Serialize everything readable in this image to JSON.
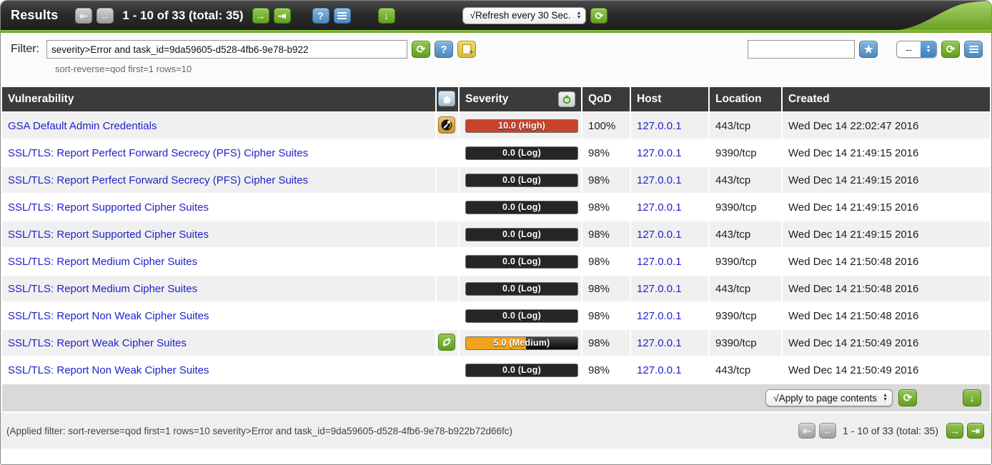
{
  "header": {
    "title": "Results",
    "pagination_label": "1 - 10 of 33 (total: 35)",
    "refresh_select_value": "√Refresh every 30 Sec.",
    "icons": {
      "first": "⇤",
      "prev": "←",
      "next": "→",
      "last": "⇥",
      "help": "?",
      "list": "list-lines-icon",
      "download": "↓",
      "refresh": "⟳"
    }
  },
  "filter": {
    "label": "Filter:",
    "value": "severity>Error and task_id=9da59605-d528-4fb6-9e78-b922",
    "subtext": "sort-reverse=qod first=1 rows=10",
    "saved_search_value": "",
    "saved_select_value": "--",
    "icons": {
      "refresh": "⟳",
      "help": "?",
      "new": "+",
      "star": "★"
    }
  },
  "table": {
    "columns": {
      "vulnerability": "Vulnerability",
      "solution_type": "solution-type-puzzle-icon",
      "severity": "Severity",
      "qod": "QoD",
      "host": "Host",
      "location": "Location",
      "created": "Created"
    },
    "rows": [
      {
        "name": "GSA Default Admin Credentials",
        "solution_type": "workaround",
        "severity": {
          "label": "10.0 (High)",
          "level": "high",
          "fill_pct": 100
        },
        "qod": "100%",
        "host": "127.0.0.1",
        "location": "443/tcp",
        "created": "Wed Dec 14 22:02:47 2016"
      },
      {
        "name": "SSL/TLS: Report Perfect Forward Secrecy (PFS) Cipher Suites",
        "solution_type": "",
        "severity": {
          "label": "0.0 (Log)",
          "level": "log",
          "fill_pct": 100
        },
        "qod": "98%",
        "host": "127.0.0.1",
        "location": "9390/tcp",
        "created": "Wed Dec 14 21:49:15 2016"
      },
      {
        "name": "SSL/TLS: Report Perfect Forward Secrecy (PFS) Cipher Suites",
        "solution_type": "",
        "severity": {
          "label": "0.0 (Log)",
          "level": "log",
          "fill_pct": 100
        },
        "qod": "98%",
        "host": "127.0.0.1",
        "location": "443/tcp",
        "created": "Wed Dec 14 21:49:15 2016"
      },
      {
        "name": "SSL/TLS: Report Supported Cipher Suites",
        "solution_type": "",
        "severity": {
          "label": "0.0 (Log)",
          "level": "log",
          "fill_pct": 100
        },
        "qod": "98%",
        "host": "127.0.0.1",
        "location": "9390/tcp",
        "created": "Wed Dec 14 21:49:15 2016"
      },
      {
        "name": "SSL/TLS: Report Supported Cipher Suites",
        "solution_type": "",
        "severity": {
          "label": "0.0 (Log)",
          "level": "log",
          "fill_pct": 100
        },
        "qod": "98%",
        "host": "127.0.0.1",
        "location": "443/tcp",
        "created": "Wed Dec 14 21:49:15 2016"
      },
      {
        "name": "SSL/TLS: Report Medium Cipher Suites",
        "solution_type": "",
        "severity": {
          "label": "0.0 (Log)",
          "level": "log",
          "fill_pct": 100
        },
        "qod": "98%",
        "host": "127.0.0.1",
        "location": "9390/tcp",
        "created": "Wed Dec 14 21:50:48 2016"
      },
      {
        "name": "SSL/TLS: Report Medium Cipher Suites",
        "solution_type": "",
        "severity": {
          "label": "0.0 (Log)",
          "level": "log",
          "fill_pct": 100
        },
        "qod": "98%",
        "host": "127.0.0.1",
        "location": "443/tcp",
        "created": "Wed Dec 14 21:50:48 2016"
      },
      {
        "name": "SSL/TLS: Report Non Weak Cipher Suites",
        "solution_type": "",
        "severity": {
          "label": "0.0 (Log)",
          "level": "log",
          "fill_pct": 100
        },
        "qod": "98%",
        "host": "127.0.0.1",
        "location": "9390/tcp",
        "created": "Wed Dec 14 21:50:48 2016"
      },
      {
        "name": "SSL/TLS: Report Weak Cipher Suites",
        "solution_type": "mitigate",
        "severity": {
          "label": "5.0 (Medium)",
          "level": "medium",
          "fill_pct": 54
        },
        "qod": "98%",
        "host": "127.0.0.1",
        "location": "9390/tcp",
        "created": "Wed Dec 14 21:50:49 2016"
      },
      {
        "name": "SSL/TLS: Report Non Weak Cipher Suites",
        "solution_type": "",
        "severity": {
          "label": "0.0 (Log)",
          "level": "log",
          "fill_pct": 100
        },
        "qod": "98%",
        "host": "127.0.0.1",
        "location": "443/tcp",
        "created": "Wed Dec 14 21:50:49 2016"
      }
    ],
    "action_select_value": "√Apply to page contents"
  },
  "footer": {
    "applied_filter": "(Applied filter: sort-reverse=qod first=1 rows=10 severity>Error and task_id=9da59605-d528-4fb6-9e78-b922b72d66fc)",
    "pagination_label": "1 - 10 of 33 (total: 35)"
  },
  "colors": {
    "accent_green": "#6ba024",
    "header_dark": "#2b2b2b",
    "table_header": "#3b3b3b",
    "link_blue": "#2121cc",
    "severity_high": "#c8432a",
    "severity_log": "#262626",
    "severity_medium": "#f0a41c",
    "button_green": "#61a01d",
    "button_blue": "#4d87bd",
    "button_gray": "#9d9d9d"
  }
}
